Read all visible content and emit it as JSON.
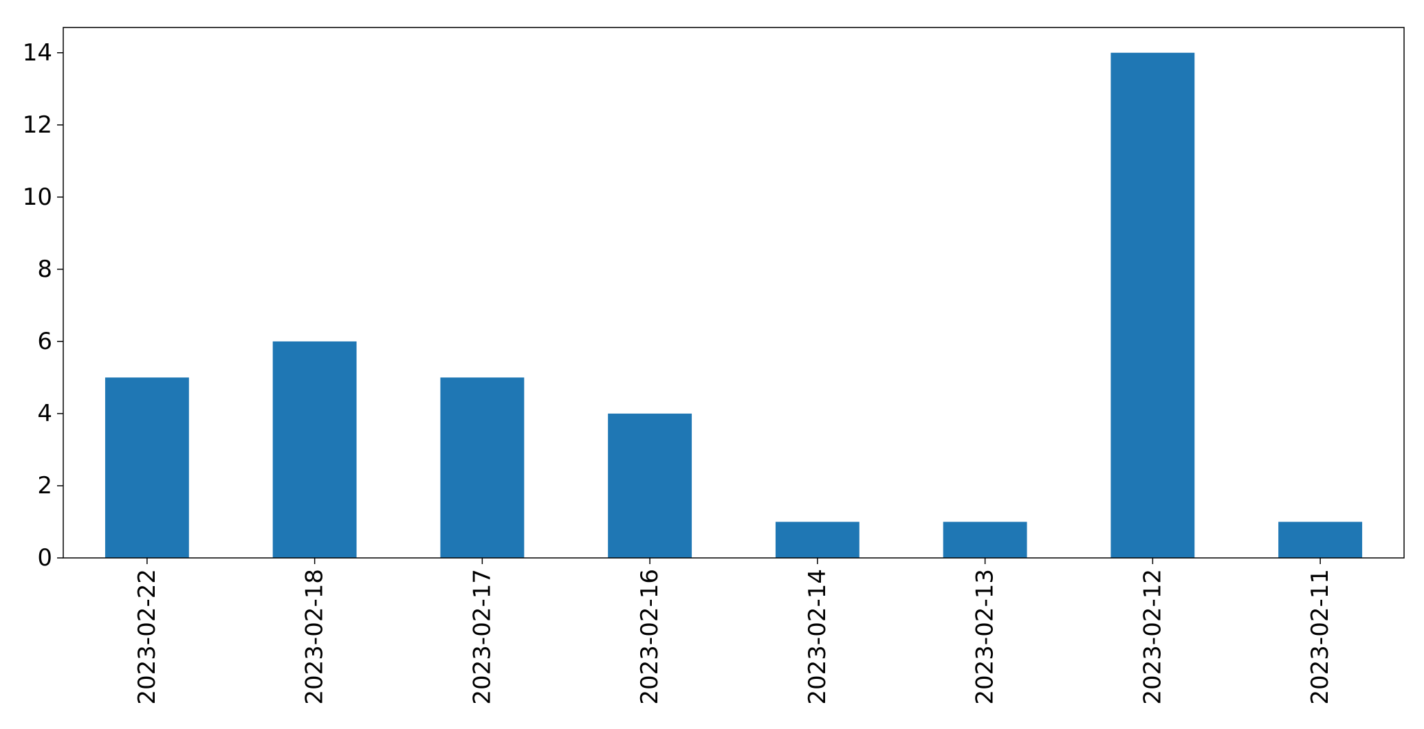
{
  "chart_data": {
    "type": "bar",
    "categories": [
      "2023-02-22",
      "2023-02-18",
      "2023-02-17",
      "2023-02-16",
      "2023-02-14",
      "2023-02-13",
      "2023-02-12",
      "2023-02-11"
    ],
    "values": [
      5,
      6,
      5,
      4,
      1,
      1,
      14,
      1
    ],
    "title": "",
    "xlabel": "",
    "ylabel": "",
    "ylim": [
      0,
      14.7
    ],
    "yticks": [
      0,
      2,
      4,
      6,
      8,
      10,
      12,
      14
    ],
    "grid": false,
    "legend": "none",
    "bar_color": "#1f77b4"
  }
}
